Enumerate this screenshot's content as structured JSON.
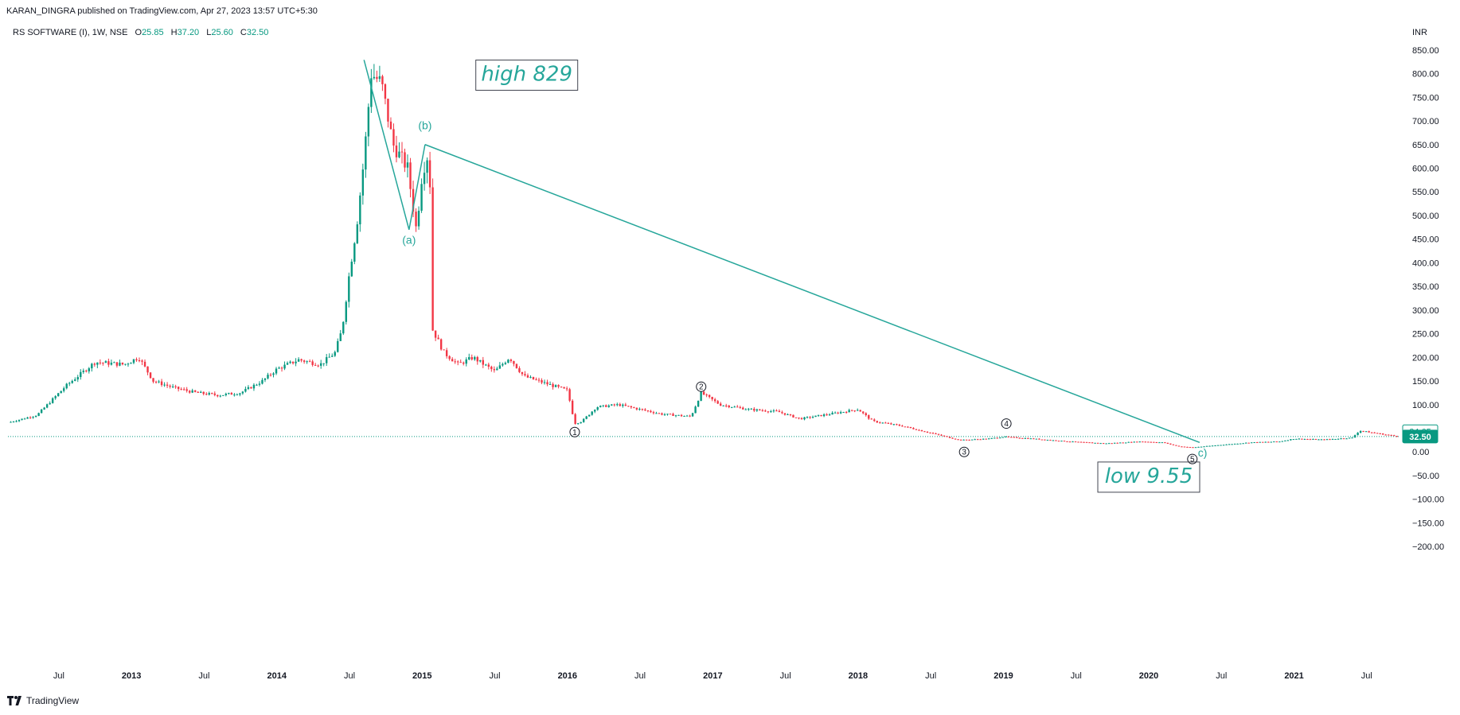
{
  "publisher": "KARAN_DINGRA published on TradingView.com, Apr 27, 2023 13:57 UTC+5:30",
  "legend": {
    "symbol": "RS SOFTWARE (I), 1W, NSE",
    "o_key": "O",
    "o": "25.85",
    "h_key": "H",
    "h": "37.20",
    "l_key": "L",
    "l": "25.60",
    "c_key": "C",
    "c": "32.50"
  },
  "currency": "INR",
  "footer": "TradingView",
  "colors": {
    "up": "#089981",
    "down": "#f23645",
    "line": "#26a69a"
  },
  "chart_data": {
    "type": "candlestick",
    "interval": "1W",
    "y_ticks": [
      850,
      800,
      750,
      700,
      650,
      600,
      550,
      500,
      450,
      400,
      350,
      300,
      250,
      200,
      150,
      100,
      50,
      0,
      -50,
      -100,
      -150,
      -200
    ],
    "y_tick_labels": [
      "850.00",
      "800.00",
      "750.00",
      "700.00",
      "650.00",
      "600.00",
      "550.00",
      "500.00",
      "450.00",
      "400.00",
      "350.00",
      "300.00",
      "250.00",
      "200.00",
      "150.00",
      "100.00",
      "50.00",
      "0.00",
      "−50.00",
      "−100.00",
      "−150.00",
      "−200.00"
    ],
    "ylim": [
      -230,
      880
    ],
    "x_ticks": [
      {
        "label": "Jul",
        "date": 2012.5,
        "bold": false
      },
      {
        "label": "2013",
        "date": 2013.0,
        "bold": true
      },
      {
        "label": "Jul",
        "date": 2013.5,
        "bold": false
      },
      {
        "label": "2014",
        "date": 2014.0,
        "bold": true
      },
      {
        "label": "Jul",
        "date": 2014.5,
        "bold": false
      },
      {
        "label": "2015",
        "date": 2015.0,
        "bold": true
      },
      {
        "label": "Jul",
        "date": 2015.5,
        "bold": false
      },
      {
        "label": "2016",
        "date": 2016.0,
        "bold": true
      },
      {
        "label": "Jul",
        "date": 2016.5,
        "bold": false
      },
      {
        "label": "2017",
        "date": 2017.0,
        "bold": true
      },
      {
        "label": "Jul",
        "date": 2017.5,
        "bold": false
      },
      {
        "label": "2018",
        "date": 2018.0,
        "bold": true
      },
      {
        "label": "Jul",
        "date": 2018.5,
        "bold": false
      },
      {
        "label": "2019",
        "date": 2019.0,
        "bold": true
      },
      {
        "label": "Jul",
        "date": 2019.5,
        "bold": false
      },
      {
        "label": "2020",
        "date": 2020.0,
        "bold": true
      },
      {
        "label": "Jul",
        "date": 2020.5,
        "bold": false
      },
      {
        "label": "2021",
        "date": 2021.0,
        "bold": true
      },
      {
        "label": "Jul",
        "date": 2021.5,
        "bold": false
      }
    ],
    "xlim": [
      2012.15,
      2021.72
    ],
    "price_path": [
      [
        2012.15,
        62
      ],
      [
        2012.35,
        78
      ],
      [
        2012.55,
        140
      ],
      [
        2012.75,
        190
      ],
      [
        2012.95,
        185
      ],
      [
        2013.05,
        200
      ],
      [
        2013.15,
        150
      ],
      [
        2013.3,
        135
      ],
      [
        2013.45,
        125
      ],
      [
        2013.6,
        120
      ],
      [
        2013.75,
        125
      ],
      [
        2013.9,
        150
      ],
      [
        2014.0,
        175
      ],
      [
        2014.15,
        195
      ],
      [
        2014.3,
        185
      ],
      [
        2014.4,
        210
      ],
      [
        2014.45,
        260
      ],
      [
        2014.5,
        380
      ],
      [
        2014.55,
        480
      ],
      [
        2014.6,
        620
      ],
      [
        2014.65,
        800
      ],
      [
        2014.72,
        780
      ],
      [
        2014.8,
        650
      ],
      [
        2014.9,
        600
      ],
      [
        2014.96,
        470
      ],
      [
        2015.0,
        590
      ],
      [
        2015.05,
        640
      ],
      [
        2015.07,
        260
      ],
      [
        2015.15,
        210
      ],
      [
        2015.25,
        185
      ],
      [
        2015.35,
        200
      ],
      [
        2015.5,
        170
      ],
      [
        2015.6,
        200
      ],
      [
        2015.7,
        160
      ],
      [
        2015.85,
        145
      ],
      [
        2016.0,
        130
      ],
      [
        2016.05,
        60
      ],
      [
        2016.1,
        65
      ],
      [
        2016.2,
        95
      ],
      [
        2016.35,
        100
      ],
      [
        2016.5,
        90
      ],
      [
        2016.65,
        80
      ],
      [
        2016.85,
        75
      ],
      [
        2016.92,
        125
      ],
      [
        2017.05,
        100
      ],
      [
        2017.25,
        90
      ],
      [
        2017.45,
        85
      ],
      [
        2017.6,
        70
      ],
      [
        2017.8,
        80
      ],
      [
        2018.0,
        90
      ],
      [
        2018.1,
        65
      ],
      [
        2018.3,
        55
      ],
      [
        2018.5,
        40
      ],
      [
        2018.7,
        25
      ],
      [
        2018.9,
        28
      ],
      [
        2019.0,
        32
      ],
      [
        2019.2,
        28
      ],
      [
        2019.45,
        22
      ],
      [
        2019.7,
        18
      ],
      [
        2019.95,
        22
      ],
      [
        2020.1,
        20
      ],
      [
        2020.2,
        12
      ],
      [
        2020.3,
        9.55
      ],
      [
        2020.5,
        15
      ],
      [
        2020.7,
        20
      ],
      [
        2020.9,
        22
      ],
      [
        2021.0,
        28
      ],
      [
        2021.2,
        26
      ],
      [
        2021.4,
        30
      ],
      [
        2021.45,
        45
      ],
      [
        2021.6,
        38
      ],
      [
        2021.72,
        32.5
      ]
    ],
    "wave_lines": [
      [
        [
          2014.6,
          829
        ],
        [
          2014.91,
          470
        ],
        [
          2015.02,
          650
        ]
      ],
      [
        [
          2015.02,
          650
        ],
        [
          2020.35,
          20
        ]
      ]
    ],
    "wave_labels": [
      {
        "text": "(a)",
        "x": 2014.91,
        "y": 440
      },
      {
        "text": "(b)",
        "x": 2015.02,
        "y": 682
      },
      {
        "text": "c)",
        "x": 2020.37,
        "y": -10
      }
    ],
    "circle_labels": [
      {
        "text": "1",
        "x": 2016.05,
        "y": 42
      },
      {
        "text": "2",
        "x": 2016.92,
        "y": 138
      },
      {
        "text": "3",
        "x": 2018.73,
        "y": 0
      },
      {
        "text": "4",
        "x": 2019.02,
        "y": 60
      },
      {
        "text": "5",
        "x": 2020.3,
        "y": -15
      }
    ],
    "notes": [
      {
        "text": "high 829",
        "x": 2015.72,
        "y": 785
      },
      {
        "text": "low 9.55",
        "x": 2020.0,
        "y": -65
      }
    ],
    "last_price": 32.5,
    "prev_price": 34.65,
    "last_price_label": "32.50",
    "prev_price_label": "34.65"
  }
}
